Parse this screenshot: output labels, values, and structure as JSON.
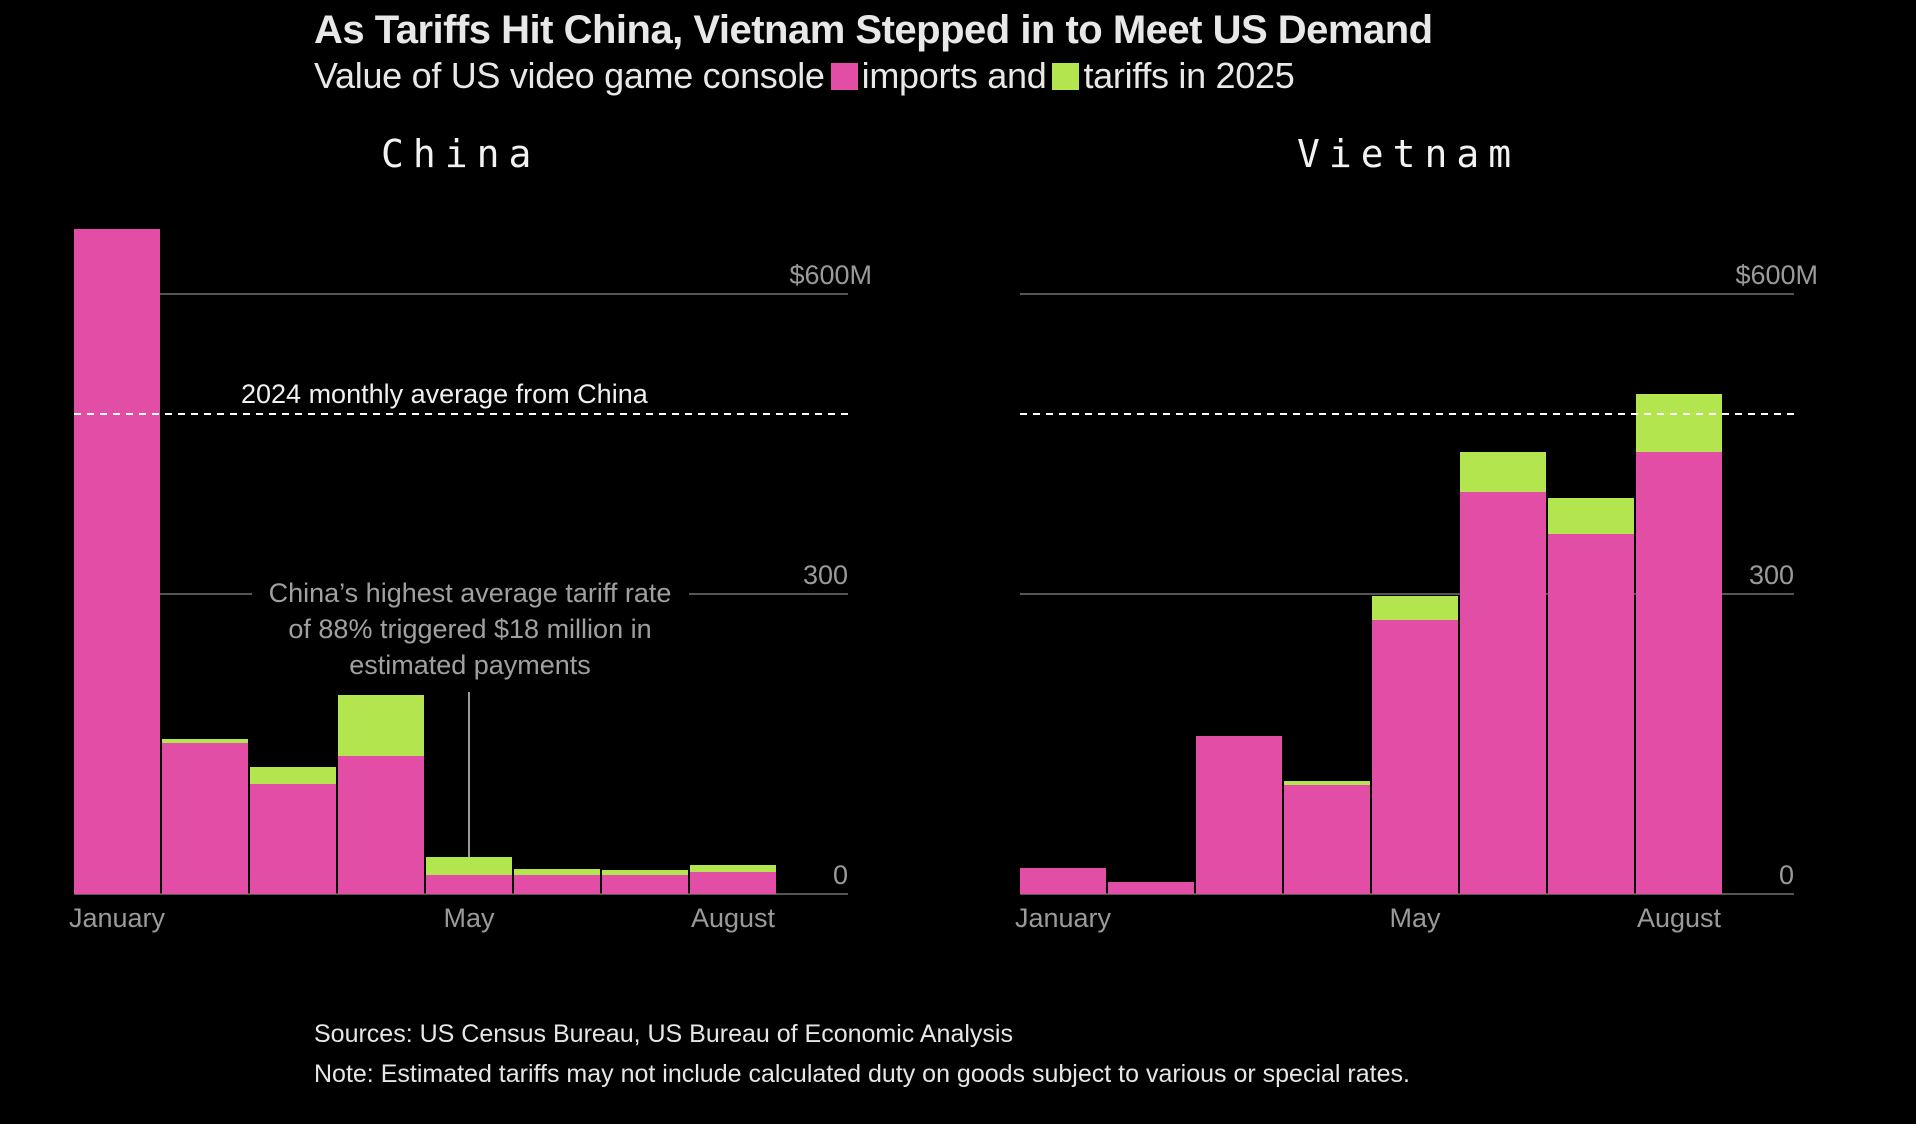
{
  "header": {
    "title": "As Tariffs Hit China, Vietnam Stepped in to Meet US Demand",
    "subtitle_prefix": "Value of US video game console",
    "legend_imports": "imports and",
    "legend_tariffs": "tariffs in 2025"
  },
  "colors": {
    "imports": "#e24ea6",
    "tariffs": "#b3e54f",
    "background": "#000000",
    "gridline": "#555555",
    "reference_line": "#ffffff"
  },
  "footer": {
    "sources": "Sources: US Census Bureau, US Bureau of Economic Analysis",
    "note": "Note: Estimated tariffs may not include calculated duty on goods subject to various or special rates."
  },
  "chart_data": [
    {
      "type": "bar",
      "stacked": true,
      "title": "China",
      "categories": [
        "January",
        "February",
        "March",
        "April",
        "May",
        "June",
        "July",
        "August"
      ],
      "x_tick_labels": [
        "January",
        "",
        "",
        "",
        "May",
        "",
        "",
        "August"
      ],
      "series": [
        {
          "name": "imports",
          "values": [
            665,
            151,
            110,
            138,
            19,
            19,
            19,
            22
          ]
        },
        {
          "name": "tariffs",
          "values": [
            0,
            4,
            17,
            61,
            18,
            6,
            5,
            7
          ]
        }
      ],
      "ylabel": "",
      "xlabel": "",
      "unit": "$M",
      "ylim": [
        0,
        665
      ],
      "y_ticks": [
        0,
        300,
        600
      ],
      "y_tick_labels": [
        "0",
        "300",
        "$600M"
      ],
      "grid": true,
      "reference_line": {
        "value": 480,
        "label": "2024 monthly average from China",
        "style": "dashed"
      },
      "annotation": {
        "lines": [
          "China’s highest average tariff rate",
          "of 88% triggered $18 million in",
          "estimated payments"
        ],
        "points_to": "May"
      }
    },
    {
      "type": "bar",
      "stacked": true,
      "title": "Vietnam",
      "categories": [
        "January",
        "February",
        "March",
        "April",
        "May",
        "June",
        "July",
        "August"
      ],
      "x_tick_labels": [
        "January",
        "",
        "",
        "",
        "May",
        "",
        "",
        "August"
      ],
      "series": [
        {
          "name": "imports",
          "values": [
            26,
            12,
            158,
            109,
            274,
            402,
            360,
            442
          ]
        },
        {
          "name": "tariffs",
          "values": [
            0,
            0,
            0,
            4,
            24,
            40,
            36,
            58
          ]
        }
      ],
      "ylabel": "",
      "xlabel": "",
      "unit": "$M",
      "ylim": [
        0,
        665
      ],
      "y_ticks": [
        0,
        300,
        600
      ],
      "y_tick_labels": [
        "0",
        "300",
        "$600M"
      ],
      "grid": true,
      "reference_line": {
        "value": 480,
        "label": "",
        "style": "dashed"
      }
    }
  ]
}
